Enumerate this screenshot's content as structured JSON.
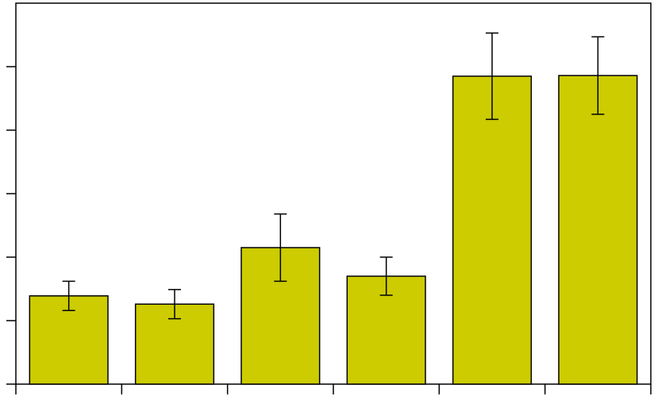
{
  "chart_data": {
    "type": "bar",
    "categories": [
      null,
      null,
      null,
      null,
      null,
      null
    ],
    "values": [
      1.39,
      1.26,
      2.15,
      1.7,
      4.85,
      4.86
    ],
    "errors": [
      0.23,
      0.23,
      0.53,
      0.3,
      0.68,
      0.61
    ],
    "color": "#cccc00",
    "ylim": [
      0,
      6
    ],
    "yticks": [
      0,
      1,
      2,
      3,
      4,
      5
    ],
    "grid": false
  }
}
